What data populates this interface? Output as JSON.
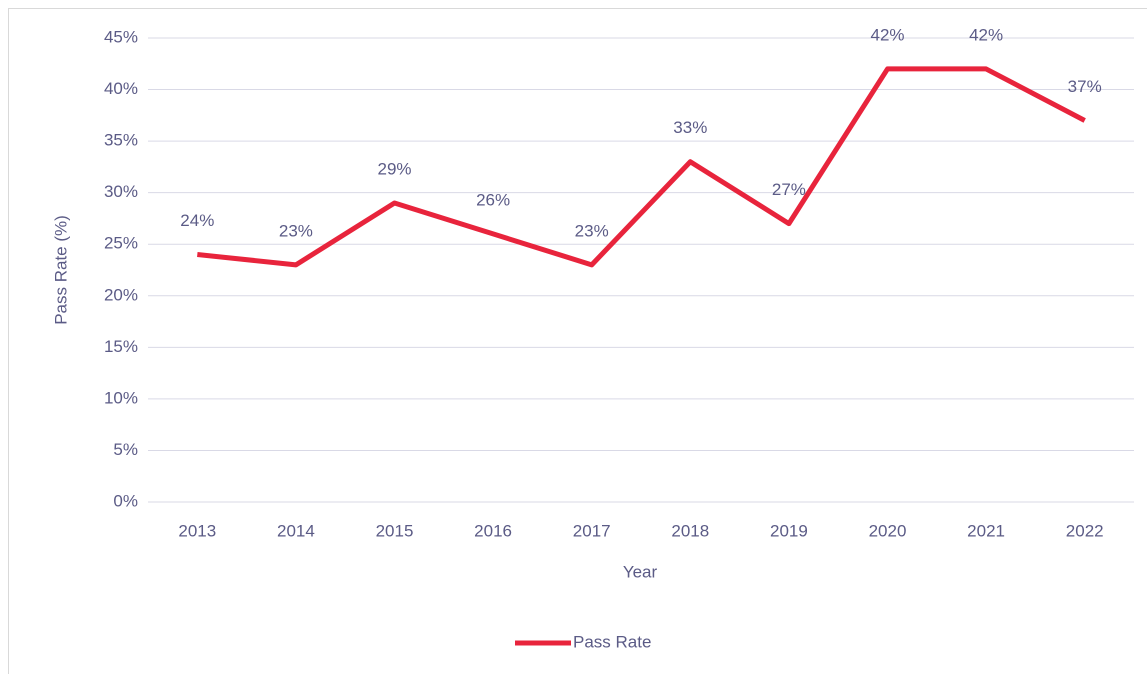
{
  "chart_data": {
    "type": "line",
    "x_label": "Year",
    "y_label": "Pass Rate (%)",
    "categories": [
      "2013",
      "2014",
      "2015",
      "2016",
      "2017",
      "2018",
      "2019",
      "2020",
      "2021",
      "2022"
    ],
    "series": [
      {
        "name": "Pass Rate",
        "color": "#e8243c",
        "values": [
          24,
          23,
          29,
          26,
          23,
          33,
          27,
          42,
          42,
          37
        ],
        "value_labels": [
          "24%",
          "23%",
          "29%",
          "26%",
          "23%",
          "33%",
          "27%",
          "42%",
          "42%",
          "37%"
        ]
      }
    ],
    "ylim": [
      0,
      45
    ],
    "yticks": [
      {
        "value": 0,
        "label": "0%"
      },
      {
        "value": 5,
        "label": "5%"
      },
      {
        "value": 10,
        "label": "10%"
      },
      {
        "value": 15,
        "label": "15%"
      },
      {
        "value": 20,
        "label": "20%"
      },
      {
        "value": 25,
        "label": "25%"
      },
      {
        "value": 30,
        "label": "30%"
      },
      {
        "value": 35,
        "label": "35%"
      },
      {
        "value": 40,
        "label": "40%"
      },
      {
        "value": 45,
        "label": "45%"
      }
    ],
    "grid": true,
    "legend": "bottom"
  }
}
